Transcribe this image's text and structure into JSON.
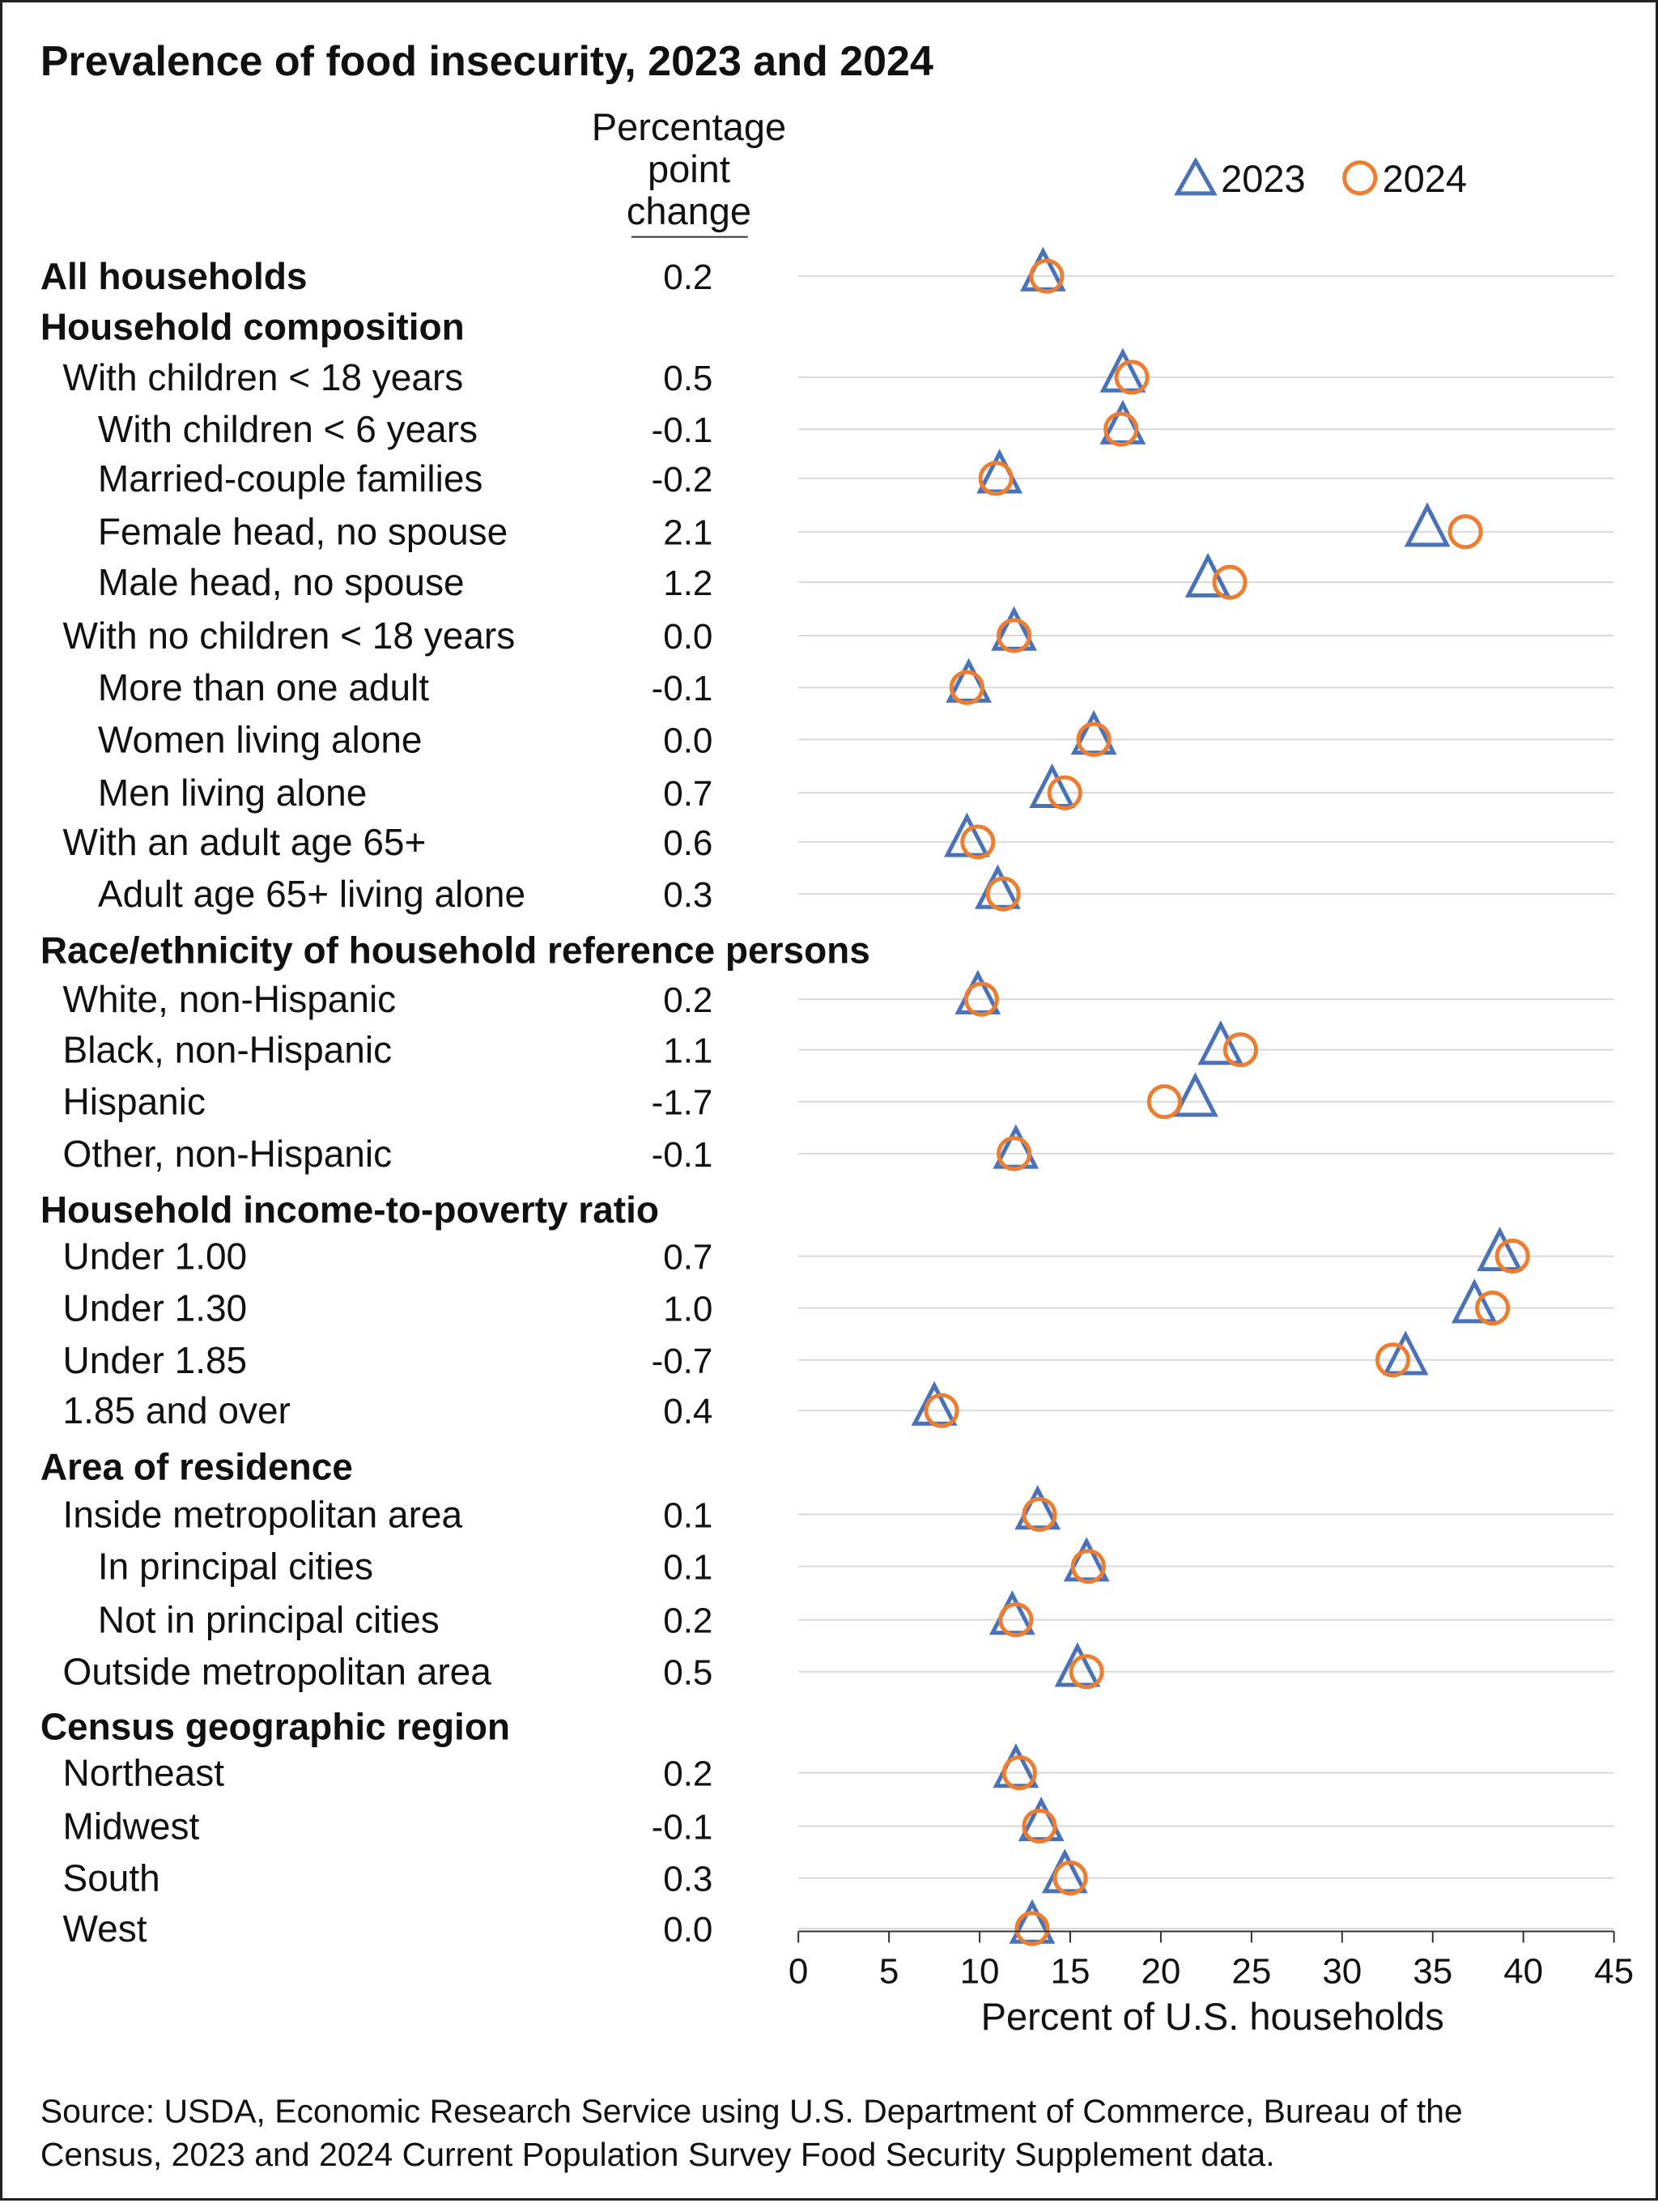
{
  "title": "Prevalence of food insecurity, 2023 and 2024",
  "change_header": [
    "Percentage",
    "point",
    "change"
  ],
  "source": [
    "Source: USDA, Economic Research Service using U.S. Department of Commerce, Bureau of the",
    "Census, 2023 and 2024 Current Population Survey Food Security Supplement data."
  ],
  "colors": {
    "2023": "#4a72b8",
    "2024": "#ed7d31",
    "grid": "#d9d9d9"
  },
  "chart_data": {
    "type": "scatter",
    "xlabel": "Percent of U.S. households",
    "xlim": [
      0,
      45
    ],
    "xticks": [
      "0",
      "5",
      "10",
      "15",
      "20",
      "25",
      "30",
      "35",
      "40",
      "45"
    ],
    "grid": "horizontal lines per row",
    "legend": {
      "placement": "top-right",
      "entries": [
        {
          "name": "2023",
          "marker": "triangle"
        },
        {
          "name": "2024",
          "marker": "circle"
        }
      ]
    },
    "rows": [
      {
        "kind": "row",
        "level": 0,
        "bold": true,
        "label": "All households",
        "change": "0.2",
        "v2023": 13.5,
        "v2024": 13.7
      },
      {
        "kind": "header",
        "label": "Household composition"
      },
      {
        "kind": "row",
        "level": 1,
        "label": "With children < 18 years",
        "change": "0.5",
        "v2023": 17.9,
        "v2024": 18.4
      },
      {
        "kind": "row",
        "level": 2,
        "label": "With children < 6 years",
        "change": "-0.1",
        "v2023": 17.9,
        "v2024": 17.8
      },
      {
        "kind": "row",
        "level": 2,
        "label": "Married-couple families",
        "change": "-0.2",
        "v2023": 11.1,
        "v2024": 10.9
      },
      {
        "kind": "row",
        "level": 2,
        "label": "Female head, no spouse",
        "change": "2.1",
        "v2023": 34.7,
        "v2024": 36.8
      },
      {
        "kind": "row",
        "level": 2,
        "label": "Male head, no spouse",
        "change": "1.2",
        "v2023": 22.6,
        "v2024": 23.8
      },
      {
        "kind": "row",
        "level": 1,
        "label": "With no children < 18 years",
        "change": "0.0",
        "v2023": 11.9,
        "v2024": 11.9
      },
      {
        "kind": "row",
        "level": 2,
        "label": "More than one adult",
        "change": "-0.1",
        "v2023": 9.4,
        "v2024": 9.3
      },
      {
        "kind": "row",
        "level": 2,
        "label": "Women living alone",
        "change": "0.0",
        "v2023": 16.3,
        "v2024": 16.3
      },
      {
        "kind": "row",
        "level": 2,
        "label": "Men living alone",
        "change": "0.7",
        "v2023": 14.0,
        "v2024": 14.7
      },
      {
        "kind": "row",
        "level": 1,
        "label": "With an adult age 65+",
        "change": "0.6",
        "v2023": 9.3,
        "v2024": 9.9
      },
      {
        "kind": "row",
        "level": 2,
        "label": "Adult age 65+ living alone",
        "change": "0.3",
        "v2023": 11.0,
        "v2024": 11.3
      },
      {
        "kind": "header",
        "label": "Race/ethnicity of household reference persons"
      },
      {
        "kind": "row",
        "level": 1,
        "label": "White, non-Hispanic",
        "change": "0.2",
        "v2023": 9.9,
        "v2024": 10.1
      },
      {
        "kind": "row",
        "level": 1,
        "label": "Black, non-Hispanic",
        "change": "1.1",
        "v2023": 23.3,
        "v2024": 24.4
      },
      {
        "kind": "row",
        "level": 1,
        "label": "Hispanic",
        "change": "-1.7",
        "v2023": 21.9,
        "v2024": 20.2
      },
      {
        "kind": "row",
        "level": 1,
        "label": "Other, non-Hispanic",
        "change": "-0.1",
        "v2023": 12.0,
        "v2024": 11.9
      },
      {
        "kind": "header",
        "label": "Household income-to-poverty ratio"
      },
      {
        "kind": "row",
        "level": 1,
        "label": "Under 1.00",
        "change": "0.7",
        "v2023": 38.7,
        "v2024": 39.4
      },
      {
        "kind": "row",
        "level": 1,
        "label": "Under 1.30",
        "change": "1.0",
        "v2023": 37.3,
        "v2024": 38.3
      },
      {
        "kind": "row",
        "level": 1,
        "label": "Under 1.85",
        "change": "-0.7",
        "v2023": 33.5,
        "v2024": 32.8
      },
      {
        "kind": "row",
        "level": 1,
        "label": "1.85 and over",
        "change": "0.4",
        "v2023": 7.5,
        "v2024": 7.9
      },
      {
        "kind": "header",
        "label": "Area of residence"
      },
      {
        "kind": "row",
        "level": 1,
        "label": "Inside metropolitan area",
        "change": "0.1",
        "v2023": 13.2,
        "v2024": 13.3
      },
      {
        "kind": "row",
        "level": 2,
        "label": "In principal cities",
        "change": "0.1",
        "v2023": 15.9,
        "v2024": 16.0
      },
      {
        "kind": "row",
        "level": 2,
        "label": "Not in principal cities",
        "change": "0.2",
        "v2023": 11.8,
        "v2024": 12.0
      },
      {
        "kind": "row",
        "level": 1,
        "label": "Outside metropolitan area",
        "change": "0.5",
        "v2023": 15.4,
        "v2024": 15.9
      },
      {
        "kind": "header",
        "label": "Census geographic region"
      },
      {
        "kind": "row",
        "level": 1,
        "label": "Northeast",
        "change": "0.2",
        "v2023": 12.0,
        "v2024": 12.2
      },
      {
        "kind": "row",
        "level": 1,
        "label": "Midwest",
        "change": "-0.1",
        "v2023": 13.4,
        "v2024": 13.3
      },
      {
        "kind": "row",
        "level": 1,
        "label": "South",
        "change": "0.3",
        "v2023": 14.7,
        "v2024": 15.0
      },
      {
        "kind": "row",
        "level": 1,
        "label": "West",
        "change": "0.0",
        "v2023": 12.9,
        "v2024": 12.9
      }
    ]
  }
}
